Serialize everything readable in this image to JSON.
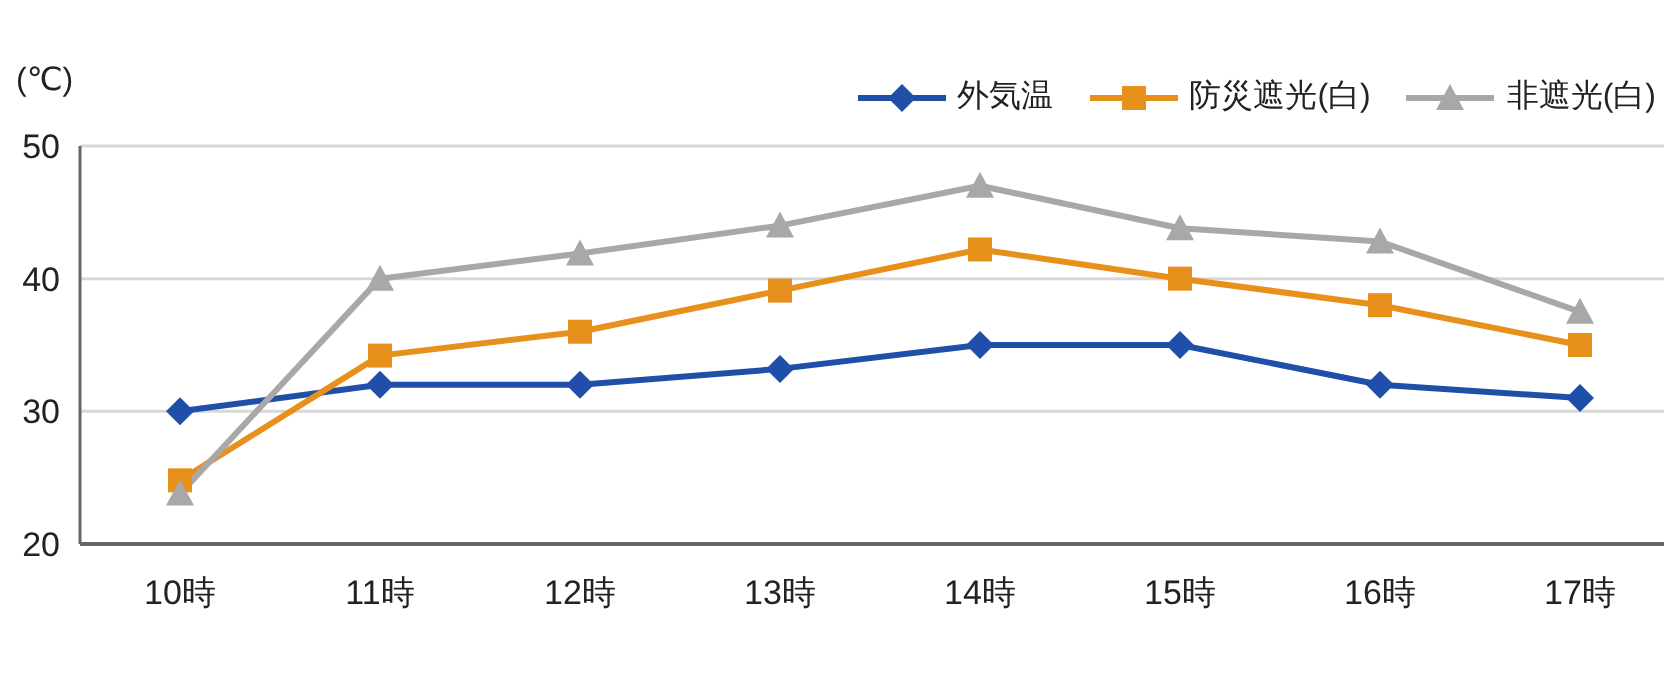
{
  "chart_data": {
    "type": "line",
    "ylabel": "(℃)",
    "categories": [
      "10時",
      "11時",
      "12時",
      "13時",
      "14時",
      "15時",
      "16時",
      "17時"
    ],
    "series": [
      {
        "name": "外気温",
        "color": "#1f4fa8",
        "marker": "diamond",
        "values": [
          30,
          32,
          32,
          33.2,
          35,
          35,
          32,
          31
        ]
      },
      {
        "name": "防災遮光(白)",
        "color": "#e8901c",
        "marker": "square",
        "values": [
          24.8,
          34.2,
          36,
          39.1,
          42.2,
          40,
          38,
          35
        ]
      },
      {
        "name": "非遮光(白)",
        "color": "#a8a8a8",
        "marker": "triangle",
        "values": [
          23.8,
          40,
          41.9,
          44,
          47,
          43.8,
          42.8,
          37.5
        ]
      }
    ],
    "ylim": [
      20,
      50
    ],
    "yticks": [
      20,
      30,
      40,
      50
    ],
    "grid": "y",
    "legend": "top right"
  }
}
